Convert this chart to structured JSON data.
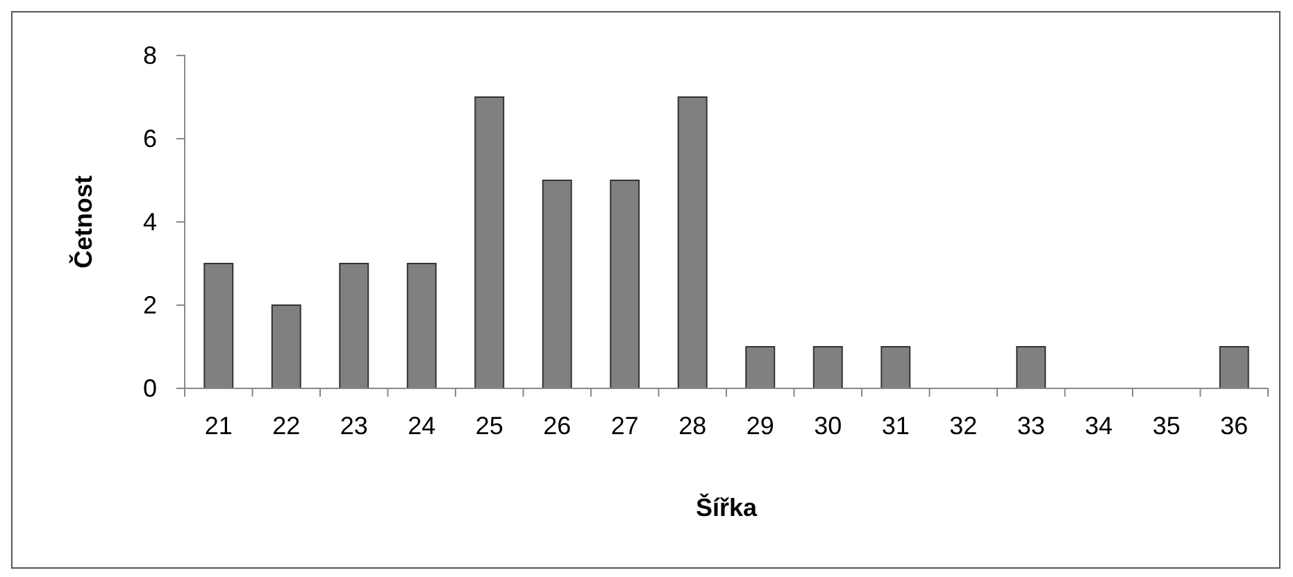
{
  "chart_data": {
    "type": "bar",
    "xlabel": "Šířka",
    "ylabel": "Četnost",
    "categories": [
      "21",
      "22",
      "23",
      "24",
      "25",
      "26",
      "27",
      "28",
      "29",
      "30",
      "31",
      "32",
      "33",
      "34",
      "35",
      "36"
    ],
    "values": [
      3,
      2,
      3,
      3,
      7,
      5,
      5,
      7,
      1,
      1,
      1,
      0,
      1,
      0,
      0,
      1
    ],
    "color": "#808080",
    "ylim": [
      0,
      8
    ],
    "yticks": [
      0,
      2,
      4,
      6,
      8
    ],
    "grid": false
  }
}
